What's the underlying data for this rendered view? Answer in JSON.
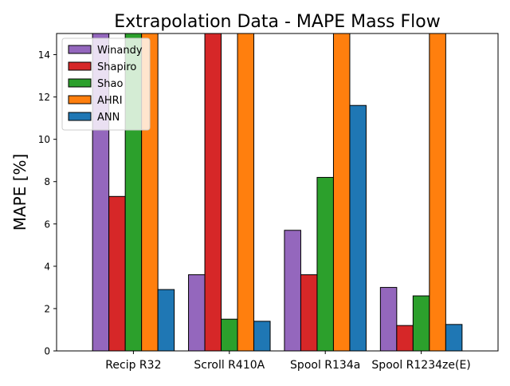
{
  "chart_data": {
    "type": "bar",
    "title": "Extrapolation Data - MAPE Mass Flow",
    "xlabel": "",
    "ylabel": "MAPE [%]",
    "categories": [
      "Recip R32",
      "Scroll R410A",
      "Spool R134a",
      "Spool R1234ze(E)"
    ],
    "ylim": [
      0,
      15
    ],
    "yticks": [
      0,
      2,
      4,
      6,
      8,
      10,
      12,
      14
    ],
    "grid": false,
    "legend_position": "top-left",
    "series": [
      {
        "name": "Winandy",
        "color": "#9467bd",
        "values": [
          15.0,
          3.6,
          5.7,
          3.0
        ]
      },
      {
        "name": "Shapiro",
        "color": "#d62728",
        "values": [
          7.3,
          15.0,
          3.6,
          1.2
        ]
      },
      {
        "name": "Shao",
        "color": "#2ca02c",
        "values": [
          15.0,
          1.5,
          8.2,
          2.6
        ]
      },
      {
        "name": "AHRI",
        "color": "#ff7f0e",
        "values": [
          15.0,
          15.0,
          15.0,
          15.0
        ]
      },
      {
        "name": "ANN",
        "color": "#1f77b4",
        "values": [
          2.9,
          1.4,
          11.6,
          1.25
        ]
      }
    ]
  }
}
